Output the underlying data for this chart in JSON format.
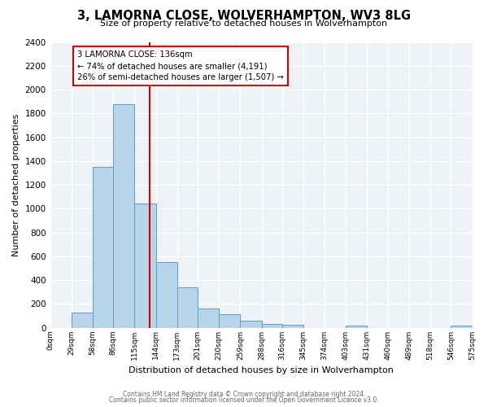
{
  "title": "3, LAMORNA CLOSE, WOLVERHAMPTON, WV3 8LG",
  "subtitle": "Size of property relative to detached houses in Wolverhampton",
  "xlabel": "Distribution of detached houses by size in Wolverhampton",
  "ylabel": "Number of detached properties",
  "bin_edges": [
    0,
    29,
    58,
    86,
    115,
    144,
    173,
    201,
    230,
    259,
    288,
    316,
    345,
    374,
    403,
    431,
    460,
    489,
    518,
    546,
    575
  ],
  "bin_labels": [
    "0sqm",
    "29sqm",
    "58sqm",
    "86sqm",
    "115sqm",
    "144sqm",
    "173sqm",
    "201sqm",
    "230sqm",
    "259sqm",
    "288sqm",
    "316sqm",
    "345sqm",
    "374sqm",
    "403sqm",
    "431sqm",
    "460sqm",
    "489sqm",
    "518sqm",
    "546sqm",
    "575sqm"
  ],
  "bar_heights": [
    0,
    125,
    1350,
    1880,
    1045,
    550,
    340,
    160,
    110,
    60,
    30,
    25,
    0,
    0,
    20,
    0,
    0,
    0,
    0,
    20
  ],
  "bar_color": "#b8d4e8",
  "bar_edge_color": "#5a9ec8",
  "property_line_x": 136,
  "property_line_color": "#cc0000",
  "annotation_title": "3 LAMORNA CLOSE: 136sqm",
  "annotation_line1": "← 74% of detached houses are smaller (4,191)",
  "annotation_line2": "26% of semi-detached houses are larger (1,507) →",
  "ylim": [
    0,
    2400
  ],
  "yticks": [
    0,
    200,
    400,
    600,
    800,
    1000,
    1200,
    1400,
    1600,
    1800,
    2000,
    2200,
    2400
  ],
  "footer1": "Contains HM Land Registry data © Crown copyright and database right 2024.",
  "footer2": "Contains public sector information licensed under the Open Government Licence v3.0.",
  "bg_color": "#ffffff",
  "plot_bg_color": "#eef2f7",
  "grid_color": "#ffffff"
}
